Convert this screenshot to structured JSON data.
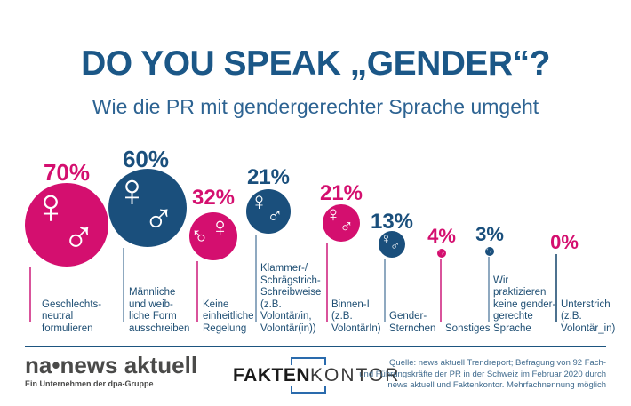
{
  "header": {
    "title": "DO YOU SPEAK „GENDER“?",
    "subtitle": "Wie die PR mit gendergerechter Sprache umgeht"
  },
  "icons": {
    "female_symbol": "♀",
    "male_symbol": "♂"
  },
  "colors": {
    "pink": "#d40f6f",
    "blue": "#1a4f7c",
    "title_blue": "#1b5787"
  },
  "chart_data": {
    "type": "bubble",
    "title": "DO YOU SPEAK „GENDER“?",
    "subtitle": "Wie die PR mit gendergerechter Sprache umgeht",
    "unit": "percent",
    "value_range": [
      0,
      70
    ],
    "note": "Mehrfachnennung möglich",
    "items": [
      {
        "pct_label": "70%",
        "value": 70,
        "color": "#d40f6f",
        "category": "Geschlechtsneutral formulieren",
        "category_display": "Geschlechts-\nneutral\nformulieren"
      },
      {
        "pct_label": "60%",
        "value": 60,
        "color": "#1a4f7c",
        "category": "Männliche und weibliche Form ausschreiben",
        "category_display": "Männliche\nund weib-\nliche Form\nausschreiben"
      },
      {
        "pct_label": "32%",
        "value": 32,
        "color": "#d40f6f",
        "category": "Keine einheitliche Regelung",
        "category_display": "Keine\neinheitliche\nRegelung"
      },
      {
        "pct_label": "21%",
        "value": 21,
        "color": "#1a4f7c",
        "category": "Klammer-/Schrägstrich-Schreibweise (z.B. Volontär/in, Volontär(in))",
        "category_display": "Klammer-/\nSchrägstrich-\nSchreibweise\n(z.B.\nVolontär/in,\nVolontär(in))"
      },
      {
        "pct_label": "21%",
        "value": 21,
        "color": "#d40f6f",
        "category": "Binnen-I (z.B. VolontärIn)",
        "category_display": "Binnen-I\n(z.B.\nVolontärIn)"
      },
      {
        "pct_label": "13%",
        "value": 13,
        "color": "#1a4f7c",
        "category": "Gender-Sternchen",
        "category_display": "Gender-\nSternchen"
      },
      {
        "pct_label": "4%",
        "value": 4,
        "color": "#d40f6f",
        "category": "Sonstiges",
        "category_display": "Sonstiges"
      },
      {
        "pct_label": "3%",
        "value": 3,
        "color": "#1a4f7c",
        "category": "Wir praktizieren keine gendergerechte Sprache",
        "category_display": "Wir\npraktizieren\nkeine gender-\ngerechte\nSprache"
      },
      {
        "pct_label": "0%",
        "value": 0,
        "color": "#d40f6f",
        "category": "Unterstrich (z.B. Volontär_in)",
        "category_display": "Unterstrich\n(z.B.\nVolontär_in)"
      }
    ]
  },
  "footer": {
    "logo_na": {
      "name": "na•news aktuell",
      "tagline": "Ein Unternehmen der dpa-Gruppe"
    },
    "logo_fk": {
      "part1": "FAKTEN",
      "part2": "KONTOR"
    },
    "source": "Quelle: news aktuell Trendreport; Befragung von 92 Fach-\nund Führungskräfte der PR in der Schweiz im Februar 2020 durch\nnews aktuell und Faktenkontor. Mehrfachnennung möglich"
  }
}
